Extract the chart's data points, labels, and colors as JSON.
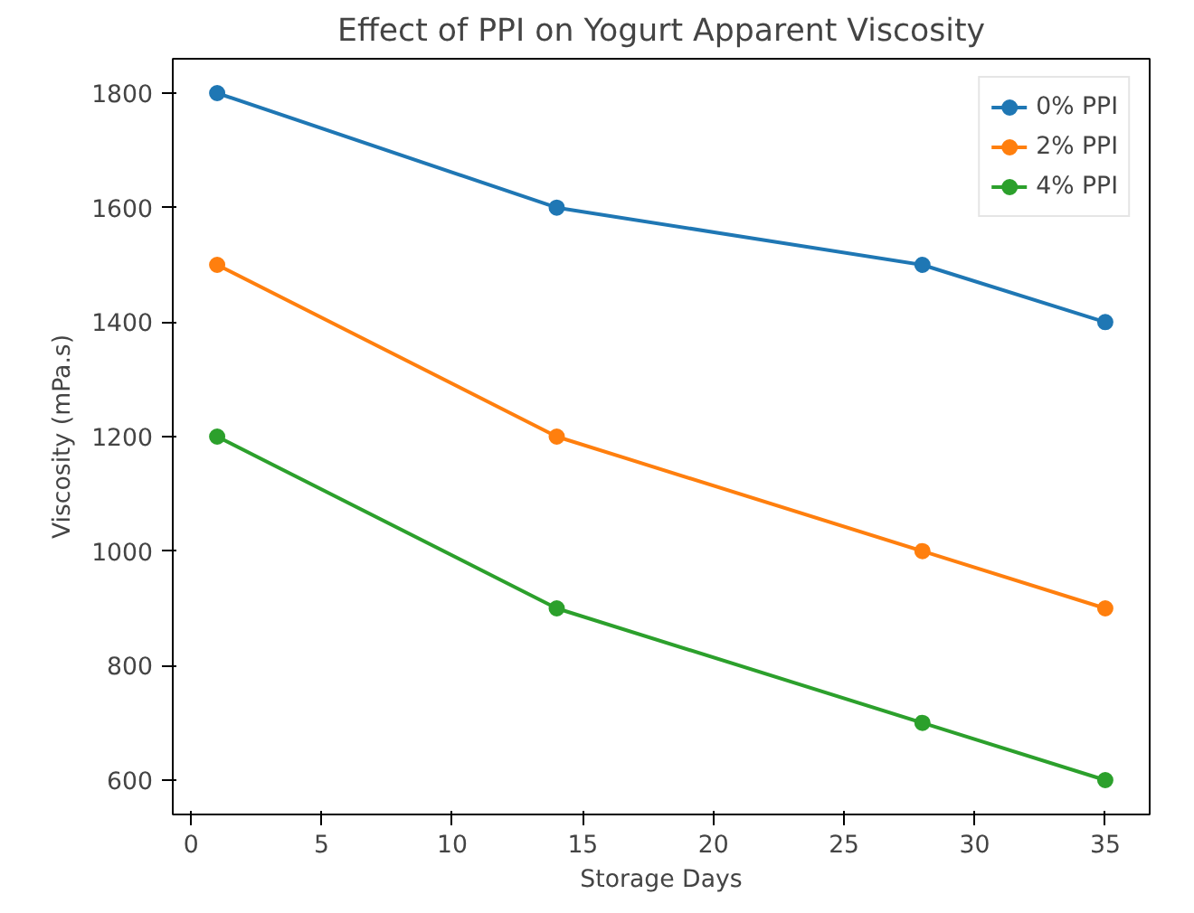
{
  "chart_data": {
    "type": "line",
    "title": "Effect of PPI on Yogurt Apparent Viscosity",
    "xlabel": "Storage Days",
    "ylabel": "Viscosity (mPa.s)",
    "x": [
      1,
      14,
      28,
      35
    ],
    "series": [
      {
        "name": "0% PPI",
        "color": "#1f77b4",
        "values": [
          1800,
          1600,
          1500,
          1400
        ]
      },
      {
        "name": "2% PPI",
        "color": "#ff7f0e",
        "values": [
          1500,
          1200,
          1000,
          900
        ]
      },
      {
        "name": "4% PPI",
        "color": "#2ca02c",
        "values": [
          1200,
          900,
          700,
          600
        ]
      }
    ],
    "xlim": [
      -0.7,
      36.7
    ],
    "ylim": [
      540,
      1860
    ],
    "xticks": [
      0,
      5,
      10,
      15,
      20,
      25,
      30,
      35
    ],
    "yticks": [
      600,
      800,
      1000,
      1200,
      1400,
      1600,
      1800
    ],
    "grid": false,
    "legend": "top right",
    "marker": "circle",
    "line_style": "solid"
  }
}
